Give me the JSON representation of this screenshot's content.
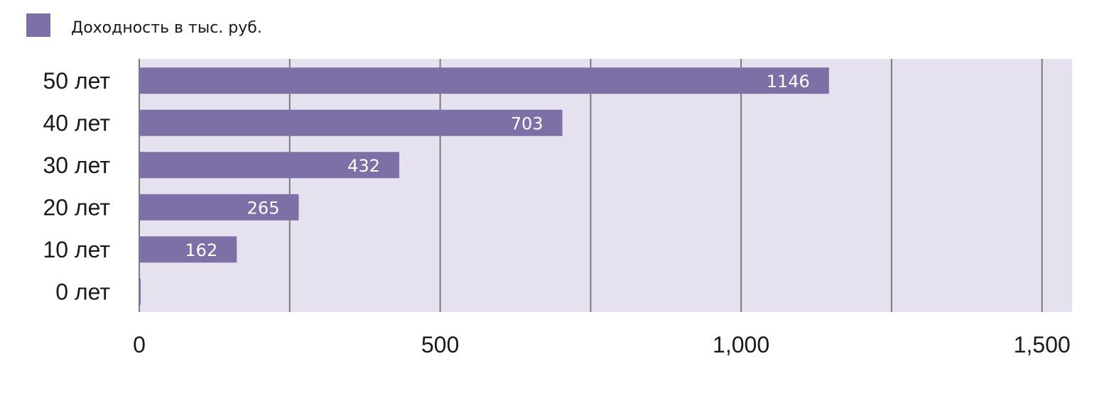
{
  "chart_data": {
    "type": "bar",
    "orientation": "horizontal",
    "categories": [
      "0 лет",
      "10 лет",
      "20 лет",
      "30 лет",
      "40 лет",
      "50 лет"
    ],
    "series": [
      {
        "name": "Доходность в тыс. руб.",
        "values": [
          0,
          162,
          265,
          432,
          703,
          1146
        ]
      }
    ],
    "data_labels": [
      "",
      "162",
      "265",
      "432",
      "703",
      "1146"
    ],
    "xlim": [
      0,
      1550
    ],
    "x_ticks": [
      0,
      500,
      1000,
      1500
    ],
    "x_tick_labels": [
      "0",
      "500",
      "1,000",
      "1,500"
    ],
    "gridlines": [
      0,
      250,
      500,
      750,
      1000,
      1250,
      1500
    ],
    "grid": true,
    "legend_position": "top-left",
    "colors": {
      "bar": "#7e6fa6",
      "plot_background": "#e5e1ee",
      "grid": "#7a7a7a"
    }
  }
}
